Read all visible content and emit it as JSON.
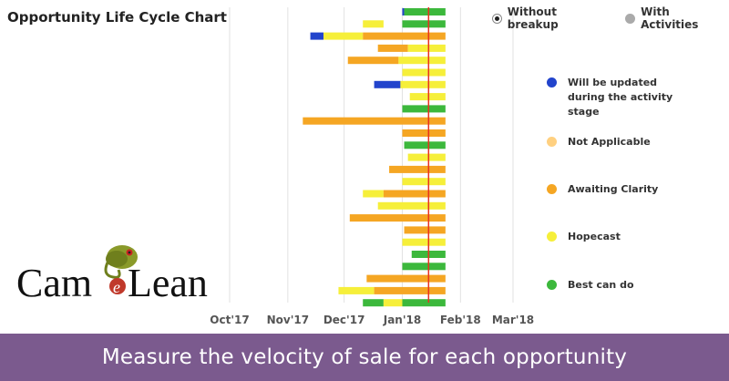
{
  "title": "Opportunity Life Cycle Chart",
  "view_toggle": {
    "options": [
      {
        "label": "Without breakup",
        "selected": true
      },
      {
        "label": "With Activities",
        "selected": false
      }
    ]
  },
  "legend": [
    {
      "label": "Will be updated during the activity stage",
      "color": "#2244cc"
    },
    {
      "label": "Not Applicable",
      "color": "#ffd080"
    },
    {
      "label": "Awaiting Clarity",
      "color": "#f5a623"
    },
    {
      "label": "Hopecast",
      "color": "#f6ef3a"
    },
    {
      "label": "Best can do",
      "color": "#3cb83c"
    }
  ],
  "logo": {
    "text": "CameLean"
  },
  "banner": {
    "text": "Measure the velocity of sale for each opportunity"
  },
  "chart_data": {
    "type": "gantt",
    "title": "Opportunity Life Cycle Chart",
    "x_ticks": [
      "Oct'17",
      "Nov'17",
      "Dec'17",
      "Jan'18",
      "Feb'18",
      "Mar'18"
    ],
    "x_range": [
      "2017-10-01",
      "2018-03-01"
    ],
    "today_marker": "2018-01-15",
    "grid": "vertical",
    "status_colors": {
      "U": "#2244cc",
      "N": "#ffd080",
      "A": "#f5a623",
      "H": "#f6ef3a",
      "B": "#3cb83c"
    },
    "rows": [
      {
        "segments": [
          [
            "2018-01-01",
            "2018-01-02",
            "U"
          ],
          [
            "2018-01-02",
            "2018-01-24",
            "B"
          ]
        ]
      },
      {
        "segments": [
          [
            "2017-12-11",
            "2017-12-22",
            "H"
          ],
          [
            "2018-01-01",
            "2018-01-24",
            "B"
          ]
        ]
      },
      {
        "segments": [
          [
            "2017-11-13",
            "2017-11-20",
            "U"
          ],
          [
            "2017-11-20",
            "2017-12-11",
            "H"
          ],
          [
            "2017-12-11",
            "2018-01-24",
            "A"
          ]
        ]
      },
      {
        "segments": [
          [
            "2017-12-19",
            "2018-01-04",
            "A"
          ],
          [
            "2018-01-04",
            "2018-01-24",
            "H"
          ]
        ]
      },
      {
        "segments": [
          [
            "2017-12-03",
            "2017-12-30",
            "A"
          ],
          [
            "2017-12-30",
            "2018-01-24",
            "H"
          ]
        ]
      },
      {
        "segments": [
          [
            "2018-01-01",
            "2018-01-24",
            "H"
          ]
        ]
      },
      {
        "segments": [
          [
            "2017-12-17",
            "2017-12-31",
            "U"
          ],
          [
            "2017-12-31",
            "2018-01-24",
            "H"
          ]
        ]
      },
      {
        "segments": [
          [
            "2018-01-05",
            "2018-01-24",
            "H"
          ]
        ]
      },
      {
        "segments": [
          [
            "2018-01-01",
            "2018-01-24",
            "B"
          ]
        ]
      },
      {
        "segments": [
          [
            "2017-11-09",
            "2018-01-24",
            "A"
          ]
        ]
      },
      {
        "segments": [
          [
            "2018-01-01",
            "2018-01-24",
            "A"
          ]
        ]
      },
      {
        "segments": [
          [
            "2018-01-02",
            "2018-01-24",
            "B"
          ]
        ]
      },
      {
        "segments": [
          [
            "2018-01-04",
            "2018-01-24",
            "H"
          ]
        ]
      },
      {
        "segments": [
          [
            "2017-12-25",
            "2018-01-24",
            "A"
          ]
        ]
      },
      {
        "segments": [
          [
            "2018-01-01",
            "2018-01-24",
            "H"
          ]
        ]
      },
      {
        "segments": [
          [
            "2017-12-11",
            "2017-12-22",
            "H"
          ],
          [
            "2017-12-22",
            "2018-01-24",
            "A"
          ]
        ]
      },
      {
        "segments": [
          [
            "2017-12-19",
            "2018-01-24",
            "H"
          ]
        ]
      },
      {
        "segments": [
          [
            "2017-12-04",
            "2018-01-24",
            "A"
          ]
        ]
      },
      {
        "segments": [
          [
            "2018-01-02",
            "2018-01-24",
            "A"
          ]
        ]
      },
      {
        "segments": [
          [
            "2018-01-01",
            "2018-01-24",
            "H"
          ]
        ]
      },
      {
        "segments": [
          [
            "2018-01-06",
            "2018-01-24",
            "B"
          ]
        ]
      },
      {
        "segments": [
          [
            "2018-01-01",
            "2018-01-24",
            "B"
          ]
        ]
      },
      {
        "segments": [
          [
            "2017-12-13",
            "2018-01-24",
            "A"
          ]
        ]
      },
      {
        "segments": [
          [
            "2017-11-28",
            "2017-12-17",
            "H"
          ],
          [
            "2017-12-17",
            "2018-01-24",
            "A"
          ]
        ]
      },
      {
        "segments": [
          [
            "2017-12-11",
            "2017-12-22",
            "B"
          ],
          [
            "2017-12-22",
            "2018-01-01",
            "H"
          ],
          [
            "2018-01-01",
            "2018-01-24",
            "B"
          ]
        ]
      }
    ]
  }
}
